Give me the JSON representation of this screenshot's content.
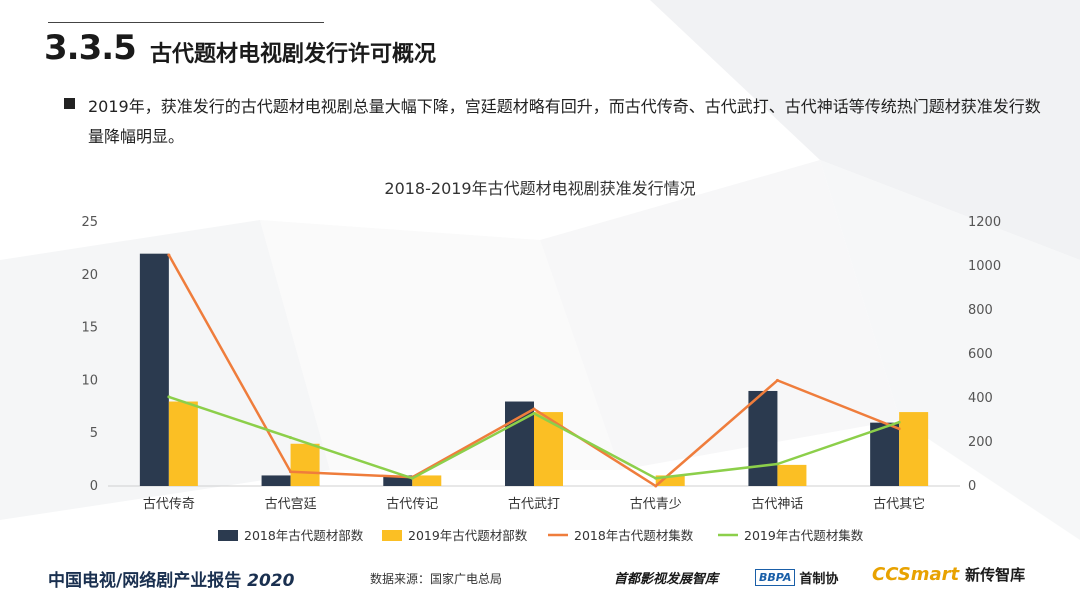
{
  "header": {
    "section_number": "3.3.5",
    "section_title": "古代题材电视剧发行许可概况"
  },
  "bullet": {
    "text": "2019年，获准发行的古代题材电视剧总量大幅下降，宫廷题材略有回升，而古代传奇、古代武打、古代神话等传统热门题材获准发行数量降幅明显。"
  },
  "chart_data": {
    "type": "bar",
    "title": "2018-2019年古代题材电视剧获准发行情况",
    "categories": [
      "古代传奇",
      "古代宫廷",
      "古代传记",
      "古代武打",
      "古代青少",
      "古代神话",
      "古代其它"
    ],
    "series": [
      {
        "name": "2018年古代题材部数",
        "type": "bar",
        "axis": "left",
        "color": "#2b3a4f",
        "values": [
          22,
          1,
          1,
          8,
          0,
          9,
          6
        ]
      },
      {
        "name": "2019年古代题材部数",
        "type": "bar",
        "axis": "left",
        "color": "#fbbf24",
        "values": [
          8,
          4,
          1,
          7,
          1,
          2,
          7
        ]
      },
      {
        "name": "2018年古代题材集数",
        "type": "line",
        "axis": "right",
        "color": "#ef7d3c",
        "values": [
          1050,
          65,
          40,
          350,
          0,
          480,
          260
        ]
      },
      {
        "name": "2019年古代题材集数",
        "type": "line",
        "axis": "right",
        "color": "#8ccf4a",
        "values": [
          405,
          220,
          35,
          330,
          35,
          100,
          290
        ]
      }
    ],
    "y_left": {
      "min": 0,
      "max": 25,
      "ticks": [
        "0",
        "5",
        "10",
        "15",
        "20",
        "25"
      ]
    },
    "y_right": {
      "min": 0,
      "max": 1200,
      "ticks": [
        "0",
        "200",
        "400",
        "600",
        "800",
        "1000",
        "1200"
      ]
    },
    "legend_position": "bottom",
    "grid": false
  },
  "footer": {
    "report_title": "中国电视/网络剧产业报告",
    "report_year": "2020",
    "source": "数据来源：国家广电总局",
    "logo1": "首都影视发展智库",
    "logo2_box": "BBPA",
    "logo2_text": "首制协",
    "logo3_cc": "CCSmart",
    "logo3_text": "新传智库"
  }
}
